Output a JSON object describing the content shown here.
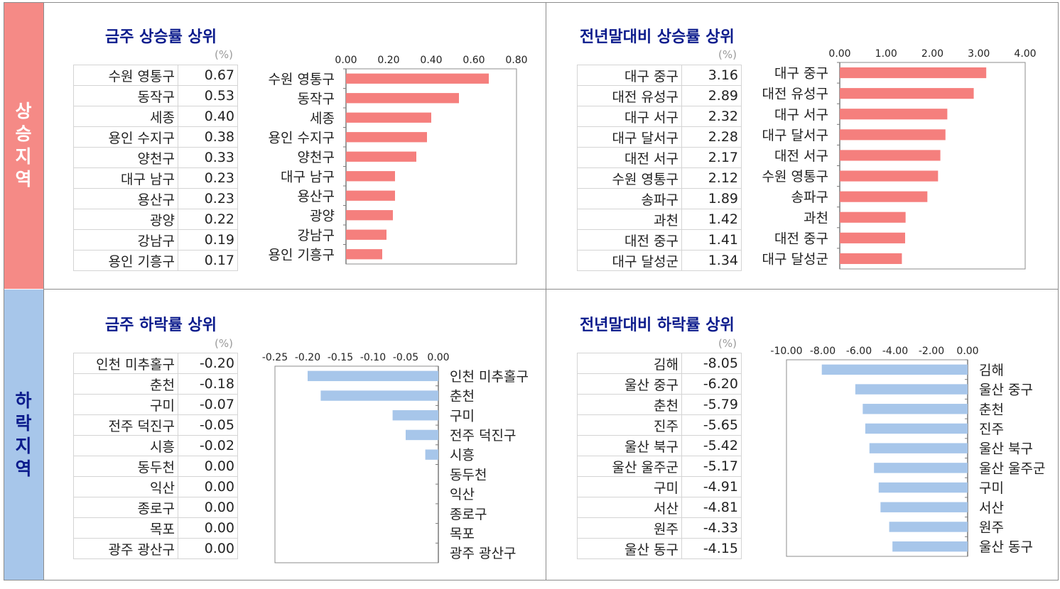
{
  "side_labels": {
    "up": "상승지역",
    "down": "하락지역"
  },
  "unit_label": "(%)",
  "colors": {
    "up": "#f57f7d",
    "down": "#a7c6ea",
    "title": "#0b1b8c"
  },
  "chart_data": [
    {
      "id": "weekly-up",
      "type": "bar",
      "orientation": "horizontal",
      "title": "금주 상승률 상위",
      "categories": [
        "수원 영통구",
        "동작구",
        "세종",
        "용인 수지구",
        "양천구",
        "대구 남구",
        "용산구",
        "광양",
        "강남구",
        "용인 기흥구"
      ],
      "values": [
        0.67,
        0.53,
        0.4,
        0.38,
        0.33,
        0.23,
        0.23,
        0.22,
        0.19,
        0.17
      ],
      "value_labels": [
        "0.67",
        "0.53",
        "0.40",
        "0.38",
        "0.33",
        "0.23",
        "0.23",
        "0.22",
        "0.19",
        "0.17"
      ],
      "xlim": [
        0,
        0.8
      ],
      "ticks": [
        0,
        0.2,
        0.4,
        0.6,
        0.8
      ],
      "tick_labels": [
        "0.00",
        "0.20",
        "0.40",
        "0.60",
        "0.80"
      ],
      "axis_position": "top",
      "legend": "none"
    },
    {
      "id": "ytd-up",
      "type": "bar",
      "orientation": "horizontal",
      "title": "전년말대비 상승률 상위",
      "categories": [
        "대구 중구",
        "대전 유성구",
        "대구 서구",
        "대구 달서구",
        "대전 서구",
        "수원 영통구",
        "송파구",
        "과천",
        "대전 중구",
        "대구 달성군"
      ],
      "values": [
        3.16,
        2.89,
        2.32,
        2.28,
        2.17,
        2.12,
        1.89,
        1.42,
        1.41,
        1.34
      ],
      "value_labels": [
        "3.16",
        "2.89",
        "2.32",
        "2.28",
        "2.17",
        "2.12",
        "1.89",
        "1.42",
        "1.41",
        "1.34"
      ],
      "xlim": [
        0,
        4
      ],
      "ticks": [
        0,
        1,
        2,
        3,
        4
      ],
      "tick_labels": [
        "0.00",
        "1.00",
        "2.00",
        "3.00",
        "4.00"
      ],
      "axis_position": "top",
      "legend": "none"
    },
    {
      "id": "weekly-down",
      "type": "bar",
      "orientation": "horizontal",
      "title": "금주 하락률 상위",
      "categories": [
        "인천 미추홀구",
        "춘천",
        "구미",
        "전주 덕진구",
        "시흥",
        "동두천",
        "익산",
        "종로구",
        "목포",
        "광주 광산구"
      ],
      "values": [
        -0.2,
        -0.18,
        -0.07,
        -0.05,
        -0.02,
        0.0,
        0.0,
        0.0,
        0.0,
        0.0
      ],
      "value_labels": [
        "-0.20",
        "-0.18",
        "-0.07",
        "-0.05",
        "-0.02",
        "0.00",
        "0.00",
        "0.00",
        "0.00",
        "0.00"
      ],
      "xlim": [
        -0.25,
        0
      ],
      "ticks": [
        -0.25,
        -0.2,
        -0.15,
        -0.1,
        -0.05,
        0
      ],
      "tick_labels": [
        "-0.25",
        "-0.20",
        "-0.15",
        "-0.10",
        "-0.05",
        "0.00"
      ],
      "axis_position": "top",
      "legend": "none"
    },
    {
      "id": "ytd-down",
      "type": "bar",
      "orientation": "horizontal",
      "title": "전년말대비 하락률 상위",
      "categories": [
        "김해",
        "울산 중구",
        "춘천",
        "진주",
        "울산 북구",
        "울산 울주군",
        "구미",
        "서산",
        "원주",
        "울산 동구"
      ],
      "values": [
        -8.05,
        -6.2,
        -5.79,
        -5.65,
        -5.42,
        -5.17,
        -4.91,
        -4.81,
        -4.33,
        -4.15
      ],
      "value_labels": [
        "-8.05",
        "-6.20",
        "-5.79",
        "-5.65",
        "-5.42",
        "-5.17",
        "-4.91",
        "-4.81",
        "-4.33",
        "-4.15"
      ],
      "xlim": [
        -10,
        0
      ],
      "ticks": [
        -10,
        -8,
        -6,
        -4,
        -2,
        0
      ],
      "tick_labels": [
        "-10.00",
        "-8.00",
        "-6.00",
        "-4.00",
        "-2.00",
        "0.00"
      ],
      "axis_position": "top",
      "legend": "none"
    }
  ]
}
